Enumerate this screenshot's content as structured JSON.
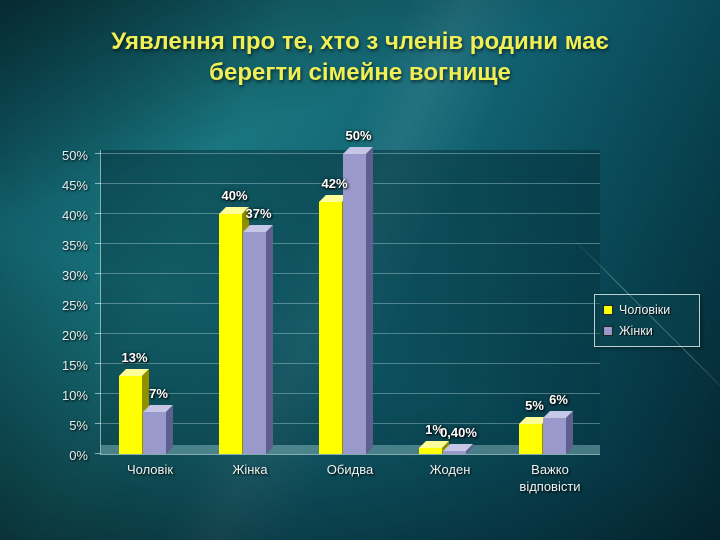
{
  "slide": {
    "title_line1": "Уявлення про те, хто з членів родини має",
    "title_line2": "берегти сімейне вогнище"
  },
  "chart_data": {
    "type": "bar",
    "title": "Уявлення про те, хто з членів родини має берегти сімейне вогнище",
    "categories": [
      "Чоловік",
      "Жінка",
      "Обидва",
      "Жоден",
      "Важко відповісти"
    ],
    "series": [
      {
        "name": "Чоловіки",
        "color": "#ffff00",
        "color_side": "#8f8f00",
        "color_top": "#ffff99",
        "values": [
          13,
          40,
          42,
          1,
          5
        ],
        "labels": [
          "13%",
          "40%",
          "42%",
          "1%",
          "5%"
        ]
      },
      {
        "name": "Жінки",
        "color": "#9999cc",
        "color_side": "#5f5f8f",
        "color_top": "#c6c6e6",
        "values": [
          7,
          37,
          50,
          0.4,
          6
        ],
        "labels": [
          "7%",
          "37%",
          "50%",
          "0,40%",
          "6%"
        ]
      }
    ],
    "xlabel": "",
    "ylabel": "",
    "ylim": [
      0,
      50
    ],
    "ytick_step": 5,
    "ytick_suffix": "%",
    "grid": true,
    "legend_position": "right"
  }
}
